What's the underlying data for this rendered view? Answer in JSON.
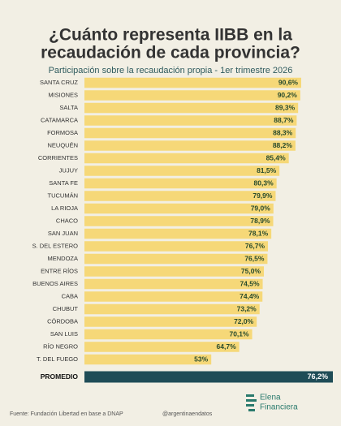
{
  "chart_data": {
    "type": "bar",
    "title": [
      "¿Cuánto representa IIBB en la",
      "recaudación de cada provincia?"
    ],
    "subtitle": "Participación sobre la recaudación propia - 1er trimestre 2026",
    "categories": [
      "SANTA CRUZ",
      "MISIONES",
      "SALTA",
      "CATAMARCA",
      "FORMOSA",
      "NEUQUÉN",
      "CORRIENTES",
      "JUJUY",
      "SANTA FE",
      "TUCUMÁN",
      "LA RIOJA",
      "CHACO",
      "SAN JUAN",
      "S. DEL ESTERO",
      "MENDOZA",
      "ENTRE RÍOS",
      "BUENOS AIRES",
      "CABA",
      "CHUBUT",
      "CÓRDOBA",
      "SAN LUIS",
      "RÍO NEGRO",
      "T. DEL FUEGO"
    ],
    "values": [
      90.6,
      90.2,
      89.3,
      88.7,
      88.3,
      88.2,
      85.4,
      81.5,
      80.3,
      79.9,
      79.0,
      78.9,
      78.1,
      76.7,
      76.5,
      75.0,
      74.5,
      74.4,
      73.2,
      72.0,
      70.1,
      64.7,
      53
    ],
    "value_labels": [
      "90,6%",
      "90,2%",
      "89,3%",
      "88,7%",
      "88,3%",
      "88,2%",
      "85,4%",
      "81,5%",
      "80,3%",
      "79,9%",
      "79,0%",
      "78,9%",
      "78,1%",
      "76,7%",
      "76,5%",
      "75,0%",
      "74,5%",
      "74,4%",
      "73,2%",
      "72,0%",
      "70,1%",
      "64,7%",
      "53%"
    ],
    "color": "#f6d878",
    "average": {
      "label": "PROMEDIO",
      "value": 76.2,
      "value_label": "76,2%",
      "color": "#1f4c57"
    },
    "source": "Fuente: Fundación Libertad en base a DNAP",
    "handle": "@argentinaendatos",
    "brand": [
      "Elena",
      "Financiera"
    ]
  }
}
